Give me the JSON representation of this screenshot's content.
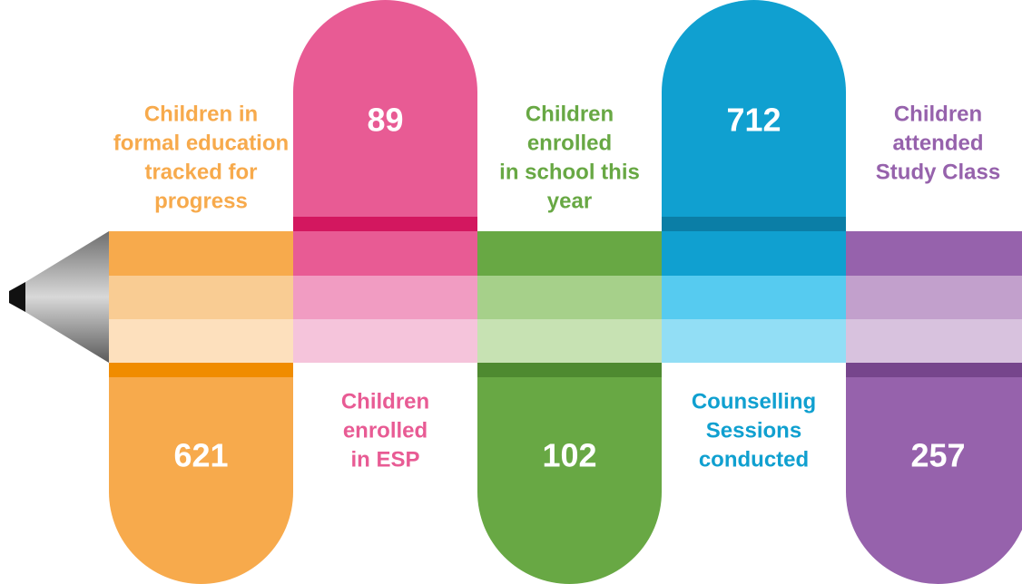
{
  "items": [
    {
      "label": [
        "Children in",
        "formal education",
        "tracked for",
        "progress"
      ],
      "value": 621
    },
    {
      "label": [
        "Children",
        "enrolled",
        "in ESP"
      ],
      "value": 89
    },
    {
      "label": [
        "Children",
        "enrolled",
        "in school this",
        "year"
      ],
      "value": 102
    },
    {
      "label": [
        "Counselling",
        "Sessions",
        "conducted"
      ],
      "value": 712
    },
    {
      "label": [
        "Children",
        "attended",
        "Study Class"
      ],
      "value": 257
    }
  ]
}
